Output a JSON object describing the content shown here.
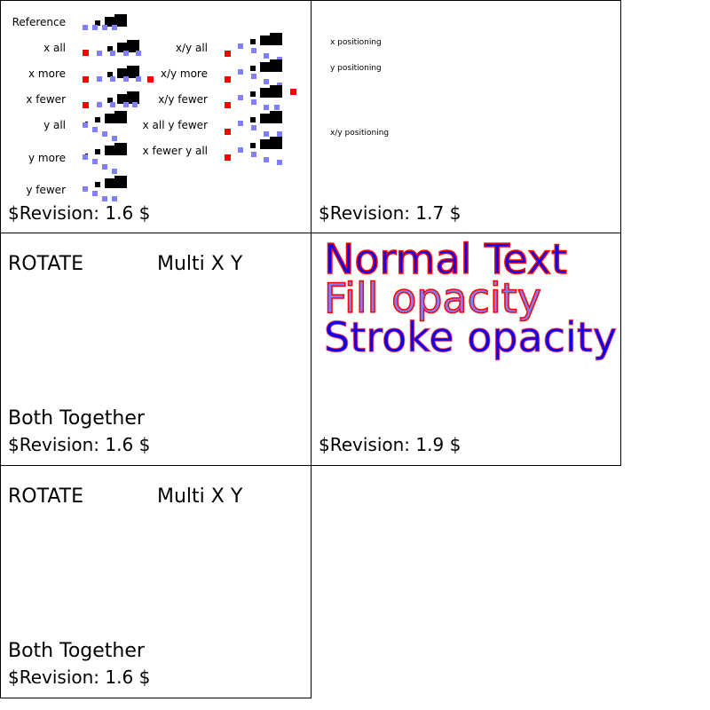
{
  "panels": [
    {
      "revision": "$Revision: 1.6 $",
      "labels_left": [
        "Reference",
        "x all",
        "x more",
        "x fewer",
        "y all",
        "y more",
        "y fewer"
      ],
      "labels_right": [
        "x/y all",
        "x/y more",
        "x/y fewer",
        "x all y fewer",
        "x fewer y all"
      ]
    },
    {
      "revision": "$Revision: 1.7 $",
      "labels": [
        "x positioning",
        "y positioning",
        "x/y positioning"
      ]
    },
    {
      "revision": "$Revision: 1.6 $",
      "rotate": "ROTATE",
      "multi": "Multi X Y",
      "both": "Both Together"
    },
    {
      "revision": "$Revision: 1.9 $",
      "normal": "Normal Text",
      "fill_opacity": "Fill opacity",
      "stroke_opacity": "Stroke opacity"
    },
    {
      "revision": "$Revision: 1.6 $",
      "rotate": "ROTATE",
      "multi": "Multi X Y",
      "both": "Both Together"
    }
  ],
  "colors": {
    "fill": "#0000ff",
    "stroke": "#ff0000",
    "marker_blue": "#8080ff",
    "marker_red": "#ff0000"
  }
}
